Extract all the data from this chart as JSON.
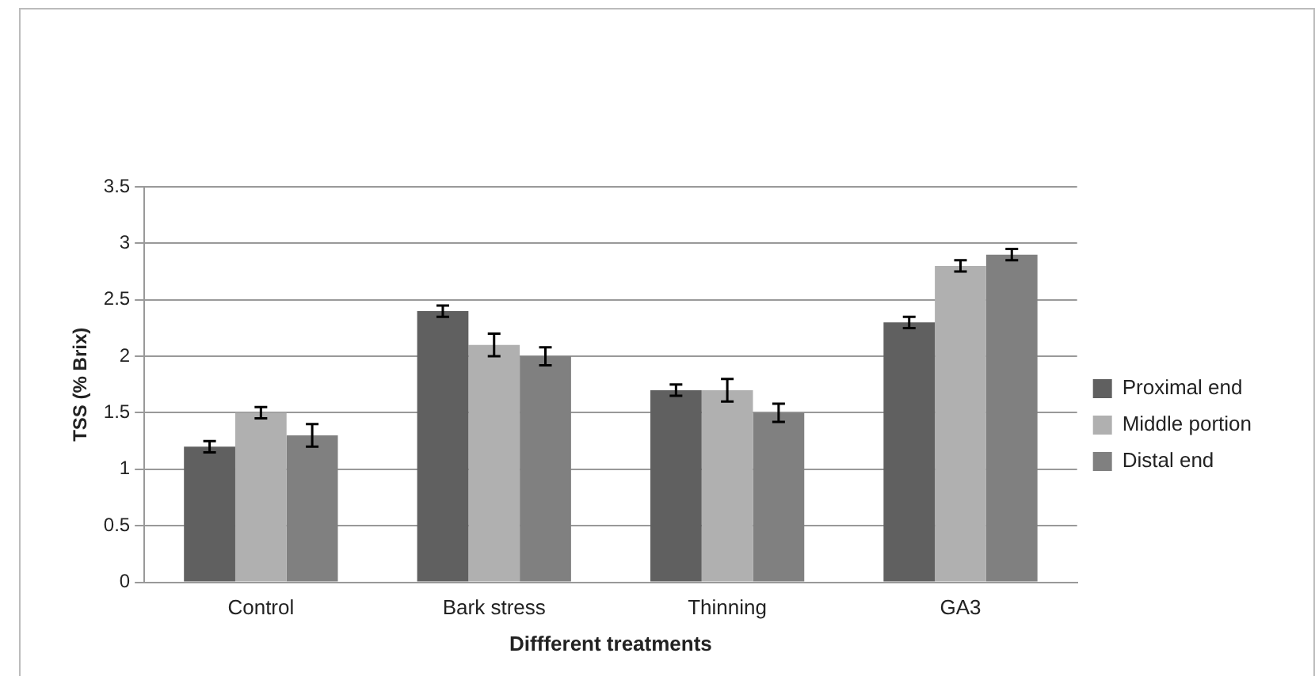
{
  "chart_data": {
    "type": "bar",
    "xlabel": "Diffferent treatments",
    "ylabel": "TSS (% Brix)",
    "categories": [
      "Control",
      "Bark stress",
      "Thinning",
      "GA3"
    ],
    "series": [
      {
        "name": "Proximal end",
        "color": "#606060",
        "values": [
          1.2,
          2.4,
          1.7,
          2.3
        ],
        "errors": [
          0.05,
          0.05,
          0.05,
          0.05
        ]
      },
      {
        "name": "Middle portion",
        "color": "#b0b0b0",
        "values": [
          1.5,
          2.1,
          1.7,
          2.8
        ],
        "errors": [
          0.05,
          0.1,
          0.1,
          0.05
        ]
      },
      {
        "name": "Distal end",
        "color": "#808080",
        "values": [
          1.3,
          2.0,
          1.5,
          2.9
        ],
        "errors": [
          0.1,
          0.08,
          0.08,
          0.05
        ]
      }
    ],
    "ylim": [
      0,
      3.5
    ],
    "yticks": [
      0,
      0.5,
      1,
      1.5,
      2,
      2.5,
      3,
      3.5
    ],
    "grid": "y",
    "legend": "right"
  }
}
